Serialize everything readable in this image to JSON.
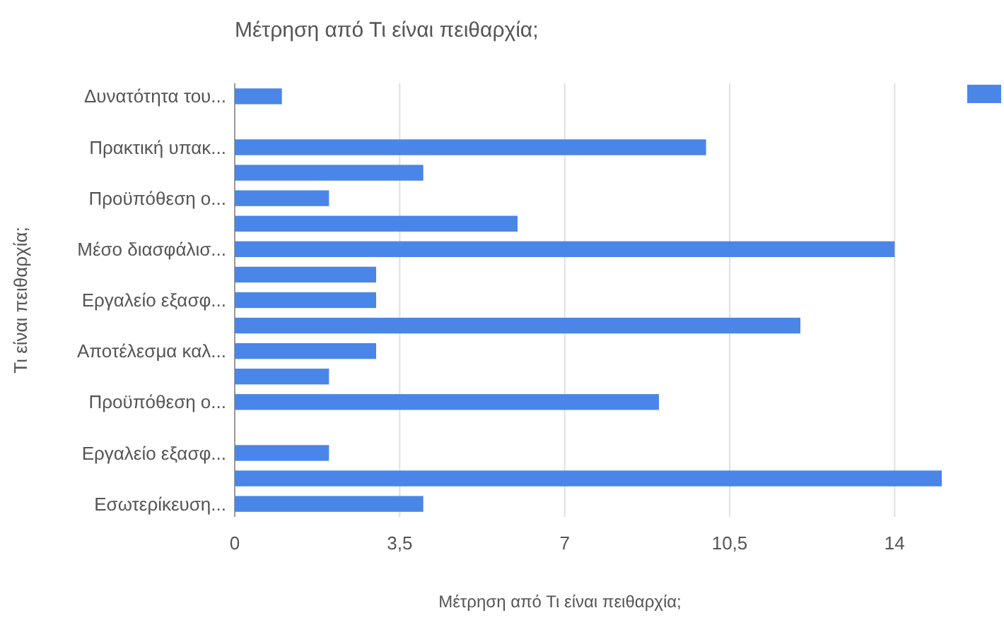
{
  "chart_data": {
    "type": "bar",
    "orientation": "horizontal",
    "title": "Μέτρηση από Τι είναι πειθαρχία;",
    "xlabel": "Μέτρηση από Τι είναι πειθαρχία;",
    "ylabel": "Τι είναι πειθαρχία;",
    "categories": [
      "Δυνατότητα του...",
      null,
      "Πρακτική υπακ...",
      null,
      "Προϋπόθεση ο...",
      null,
      "Μέσο διασφάλισ...",
      null,
      "Εργαλείο εξασφ...",
      null,
      "Αποτέλεσμα καλ...",
      null,
      "Προϋπόθεση ο...",
      null,
      "Εργαλείο εξασφ...",
      null,
      "Εσωτερίκευση..."
    ],
    "values": [
      1,
      0,
      10,
      4,
      2,
      6,
      14,
      3,
      3,
      12,
      3,
      2,
      9,
      0,
      2,
      15,
      4
    ],
    "color": "#4a86e8",
    "xlim": [
      0,
      15
    ],
    "xticks": [
      0,
      {
        "value": 3.5,
        "label": "3,5"
      },
      7,
      {
        "value": 10.5,
        "label": "10,5"
      },
      14
    ],
    "grid": "x"
  }
}
